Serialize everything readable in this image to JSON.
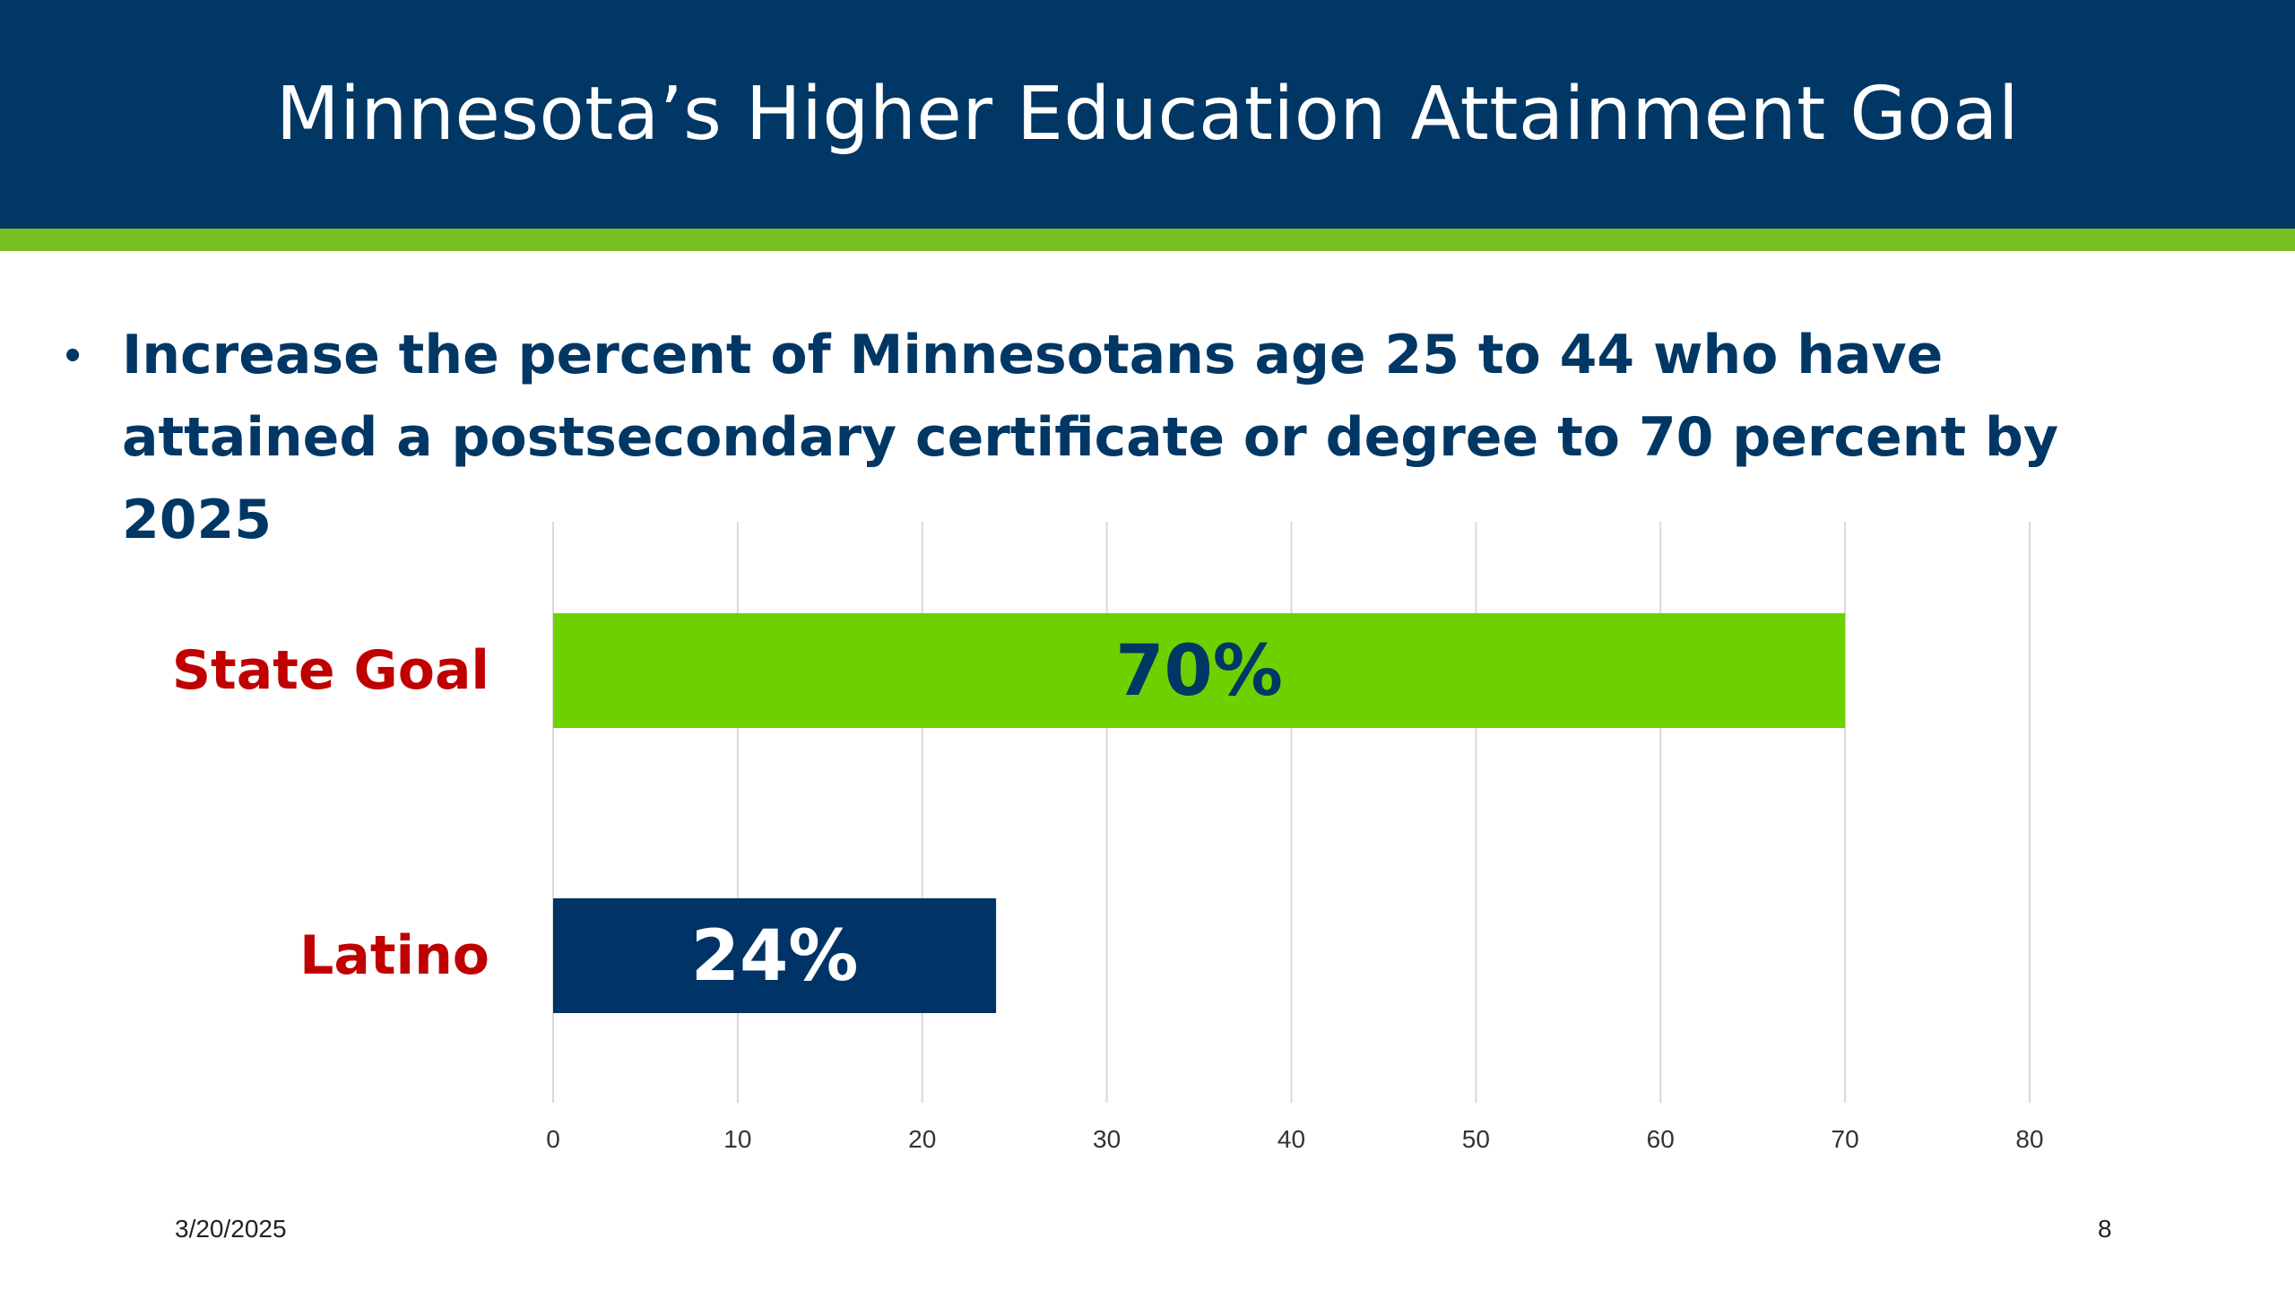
{
  "slide": {
    "title": "Minnesota’s Higher Education Attainment Goal",
    "bullet": "Increase the percent of Minnesotans age 25 to 44 who have attained a postsecondary certificate or degree to 70 percent by 2025",
    "date": "3/20/2025",
    "page_number": "8"
  },
  "colors": {
    "header_bg": "#003764",
    "accent_green": "#78BE20",
    "bar_green": "#6FD000",
    "bar_navy": "#003366",
    "category_red": "#C00000",
    "gridline": "#D9D9D9"
  },
  "chart_data": {
    "type": "bar",
    "orientation": "horizontal",
    "categories": [
      "State Goal",
      "Latino"
    ],
    "values": [
      70,
      24
    ],
    "data_labels": [
      "70%",
      "24%"
    ],
    "bar_colors": [
      "#6FD000",
      "#003366"
    ],
    "data_label_colors": [
      "#003764",
      "#ffffff"
    ],
    "xlim": [
      0,
      80
    ],
    "xticks": [
      0,
      10,
      20,
      30,
      40,
      50,
      60,
      70,
      80
    ],
    "grid": true,
    "legend": "none",
    "title": "",
    "xlabel": "",
    "ylabel": ""
  }
}
